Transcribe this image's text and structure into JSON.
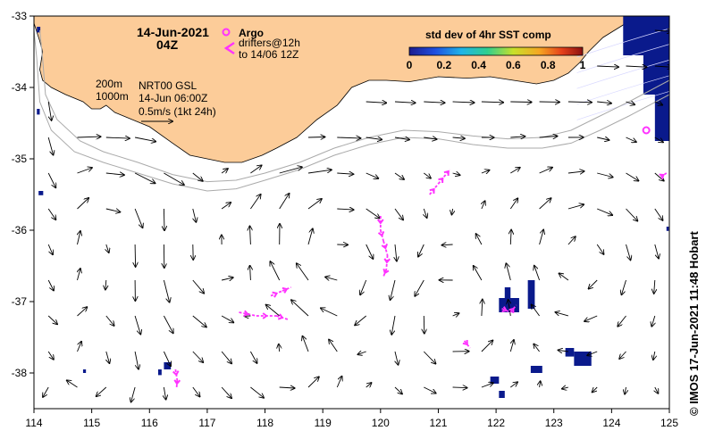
{
  "map": {
    "date_title": "14-Jun-2021",
    "time_title": "04Z",
    "legend_argo": "Argo",
    "legend_drifters": "drifters@12h",
    "legend_drifters_to": "to 14/06 12Z",
    "contour_200": "200m",
    "contour_1000": "1000m",
    "product": "NRT00 GSL",
    "product_time": "14-Jun 06:00Z",
    "scale_label": "0.5m/s (1kt 24h)",
    "colorbar_title": "std dev of 4hr SST comp",
    "colorbar_ticks": [
      "0",
      "0.2",
      "0.4",
      "0.6",
      "0.8",
      "1"
    ],
    "credit": "© IMOS 17-Jun-2021 11:48 Hobart",
    "lon_ticks": [
      "114",
      "115",
      "116",
      "117",
      "118",
      "119",
      "120",
      "121",
      "122",
      "123",
      "124",
      "125"
    ],
    "lat_ticks": [
      "-33",
      "-34",
      "-35",
      "-36",
      "-37",
      "-38"
    ],
    "lon_range": [
      114,
      125
    ],
    "lat_range": [
      -38.5,
      -33
    ],
    "colors": {
      "land": "#fccc99",
      "drifter": "#ff33ff",
      "sst_dark": "#0a1a8c",
      "shelf_line": "#aaaaaa"
    },
    "argo_floats": [
      {
        "lon": 124.6,
        "lat": -34.6
      }
    ],
    "coastline": [
      [
        114.0,
        -33.0
      ],
      [
        114.0,
        -33.1
      ],
      [
        114.1,
        -33.35
      ],
      [
        114.15,
        -33.5
      ],
      [
        114.12,
        -33.65
      ],
      [
        114.1,
        -33.75
      ],
      [
        114.15,
        -33.9
      ],
      [
        114.3,
        -34.0
      ],
      [
        114.55,
        -34.1
      ],
      [
        114.85,
        -34.2
      ],
      [
        115.0,
        -34.3
      ],
      [
        115.15,
        -34.3
      ],
      [
        115.25,
        -34.25
      ],
      [
        115.4,
        -34.35
      ],
      [
        115.7,
        -34.45
      ],
      [
        116.0,
        -34.55
      ],
      [
        116.4,
        -34.78
      ],
      [
        116.7,
        -34.95
      ],
      [
        117.0,
        -35.0
      ],
      [
        117.3,
        -35.05
      ],
      [
        117.6,
        -35.05
      ],
      [
        117.95,
        -34.95
      ],
      [
        118.2,
        -34.85
      ],
      [
        118.55,
        -34.7
      ],
      [
        118.9,
        -34.45
      ],
      [
        119.25,
        -34.25
      ],
      [
        119.5,
        -34.0
      ],
      [
        119.8,
        -33.9
      ],
      [
        120.1,
        -33.9
      ],
      [
        120.5,
        -33.92
      ],
      [
        121.0,
        -33.85
      ],
      [
        121.5,
        -33.87
      ],
      [
        121.9,
        -33.85
      ],
      [
        122.3,
        -33.9
      ],
      [
        122.7,
        -33.95
      ],
      [
        123.0,
        -33.9
      ],
      [
        123.25,
        -33.8
      ],
      [
        123.45,
        -33.65
      ],
      [
        123.6,
        -33.5
      ],
      [
        123.85,
        -33.3
      ],
      [
        124.05,
        -33.2
      ],
      [
        124.25,
        -33.1
      ],
      [
        124.4,
        -33.0
      ]
    ],
    "contour_200_line": [
      [
        114.1,
        -33.2
      ],
      [
        114.15,
        -33.6
      ],
      [
        114.2,
        -34.1
      ],
      [
        114.4,
        -34.45
      ],
      [
        114.8,
        -34.75
      ],
      [
        115.2,
        -34.9
      ],
      [
        115.8,
        -35.05
      ],
      [
        116.4,
        -35.22
      ],
      [
        117.0,
        -35.32
      ],
      [
        117.5,
        -35.3
      ],
      [
        118.0,
        -35.2
      ],
      [
        118.6,
        -35.05
      ],
      [
        119.2,
        -34.85
      ],
      [
        119.8,
        -34.7
      ],
      [
        120.4,
        -34.6
      ],
      [
        121.0,
        -34.62
      ],
      [
        121.6,
        -34.68
      ],
      [
        122.2,
        -34.72
      ],
      [
        122.8,
        -34.7
      ],
      [
        123.3,
        -34.6
      ],
      [
        123.8,
        -34.4
      ],
      [
        124.3,
        -34.2
      ],
      [
        125.0,
        -33.9
      ]
    ],
    "contour_1000_line": [
      [
        114.0,
        -33.2
      ],
      [
        114.05,
        -33.6
      ],
      [
        114.1,
        -34.2
      ],
      [
        114.3,
        -34.6
      ],
      [
        114.7,
        -34.9
      ],
      [
        115.2,
        -35.05
      ],
      [
        115.8,
        -35.2
      ],
      [
        116.4,
        -35.35
      ],
      [
        117.0,
        -35.45
      ],
      [
        117.5,
        -35.42
      ],
      [
        118.0,
        -35.3
      ],
      [
        118.6,
        -35.15
      ],
      [
        119.2,
        -34.95
      ],
      [
        119.8,
        -34.8
      ],
      [
        120.4,
        -34.7
      ],
      [
        121.0,
        -34.72
      ],
      [
        121.6,
        -34.8
      ],
      [
        122.2,
        -34.85
      ],
      [
        122.8,
        -34.85
      ],
      [
        123.3,
        -34.78
      ],
      [
        123.8,
        -34.6
      ],
      [
        124.3,
        -34.4
      ],
      [
        125.0,
        -34.1
      ]
    ],
    "sst_patches": [
      [
        124.2,
        -33.0,
        0.8,
        0.55
      ],
      [
        124.55,
        -33.55,
        0.45,
        0.55
      ],
      [
        124.75,
        -34.1,
        0.25,
        0.65
      ],
      [
        122.05,
        -36.95,
        0.35,
        0.2
      ],
      [
        122.15,
        -36.8,
        0.1,
        0.15
      ],
      [
        122.55,
        -36.7,
        0.12,
        0.4
      ],
      [
        123.2,
        -37.65,
        0.15,
        0.12
      ],
      [
        123.35,
        -37.7,
        0.3,
        0.2
      ],
      [
        122.6,
        -37.9,
        0.2,
        0.1
      ],
      [
        116.25,
        -37.85,
        0.12,
        0.1
      ],
      [
        116.15,
        -37.95,
        0.06,
        0.08
      ],
      [
        114.08,
        -35.45,
        0.08,
        0.06
      ],
      [
        114.05,
        -34.3,
        0.05,
        0.08
      ],
      [
        114.05,
        -33.15,
        0.06,
        0.08
      ],
      [
        124.95,
        -35.95,
        0.04,
        0.06
      ],
      [
        121.9,
        -38.05,
        0.15,
        0.1
      ],
      [
        122.05,
        -38.25,
        0.1,
        0.1
      ],
      [
        114.85,
        -37.95,
        0.05,
        0.05
      ]
    ],
    "drifter_tracks": [
      [
        [
          120.0,
          -35.8
        ],
        [
          120.0,
          -36.0
        ],
        [
          120.05,
          -36.15
        ],
        [
          120.12,
          -36.35
        ],
        [
          120.1,
          -36.55
        ],
        [
          120.05,
          -36.65
        ]
      ],
      [
        [
          120.85,
          -35.5
        ],
        [
          121.0,
          -35.35
        ],
        [
          121.15,
          -35.2
        ],
        [
          121.2,
          -35.15
        ]
      ],
      [
        [
          121.45,
          -37.55
        ],
        [
          121.55,
          -37.65
        ]
      ],
      [
        [
          122.1,
          -37.1
        ],
        [
          122.25,
          -37.15
        ],
        [
          122.35,
          -37.05
        ]
      ],
      [
        [
          124.85,
          -35.25
        ],
        [
          124.95,
          -35.2
        ]
      ],
      [
        [
          118.1,
          -36.92
        ],
        [
          118.3,
          -36.85
        ],
        [
          118.45,
          -36.8
        ]
      ],
      [
        [
          117.55,
          -37.15
        ],
        [
          117.85,
          -37.2
        ],
        [
          118.2,
          -37.2
        ],
        [
          118.4,
          -37.25
        ]
      ],
      [
        [
          116.45,
          -37.95
        ],
        [
          116.48,
          -38.1
        ],
        [
          116.47,
          -38.2
        ]
      ]
    ],
    "eddies": [
      {
        "lon": 115.3,
        "lat": -36.05,
        "r": 1.0,
        "sense": "cw"
      },
      {
        "lon": 117.0,
        "lat": -36.25,
        "r": 1.1,
        "sense": "ccw"
      },
      {
        "lon": 119.2,
        "lat": -36.45,
        "r": 1.1,
        "sense": "cw"
      },
      {
        "lon": 115.0,
        "lat": -37.8,
        "r": 1.0,
        "sense": "cw"
      },
      {
        "lon": 118.3,
        "lat": -37.7,
        "r": 1.0,
        "sense": "ccw"
      },
      {
        "lon": 121.2,
        "lat": -37.2,
        "r": 0.9,
        "sense": "ccw"
      },
      {
        "lon": 123.5,
        "lat": -36.3,
        "r": 1.2,
        "sense": "cw"
      }
    ]
  }
}
